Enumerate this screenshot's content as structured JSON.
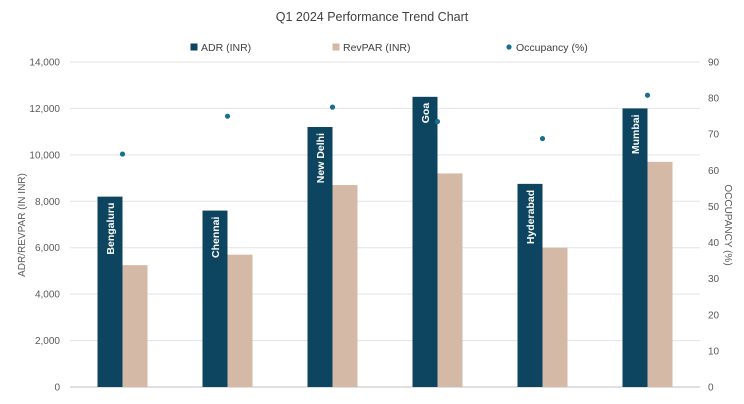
{
  "chart_data": {
    "type": "bar",
    "title": "Q1 2024 Performance Trend Chart",
    "ylabel": "ADR/REVPAR (IN INR)",
    "y2label": "OCCUPANCY (%)",
    "ylim": [
      0,
      14000
    ],
    "y2lim": [
      0,
      90
    ],
    "yticks": [
      "0",
      "2,000",
      "4,000",
      "6,000",
      "8,000",
      "10,000",
      "12,000",
      "14,000"
    ],
    "y2ticks": [
      "0",
      "10",
      "20",
      "30",
      "40",
      "50",
      "60",
      "70",
      "80",
      "90"
    ],
    "grid": true,
    "legend_position": "top",
    "categories": [
      "Bengaluru",
      "Chennai",
      "New Delhi",
      "Goa",
      "Hyderabad",
      "Mumbai"
    ],
    "series": [
      {
        "name": "ADR (INR)",
        "type": "bar",
        "axis": "left",
        "color": "#0d4560",
        "values": [
          8200,
          7600,
          11200,
          12500,
          8750,
          12000
        ]
      },
      {
        "name": "RevPAR (INR)",
        "type": "bar",
        "axis": "left",
        "color": "#d4b9a7",
        "values": [
          5250,
          5700,
          8700,
          9200,
          6000,
          9700
        ]
      },
      {
        "name": "Occupancy (%)",
        "type": "scatter",
        "axis": "right",
        "color": "#1a6f8f",
        "values": [
          64.5,
          75,
          77.5,
          73.5,
          68.8,
          80.8
        ]
      }
    ]
  }
}
